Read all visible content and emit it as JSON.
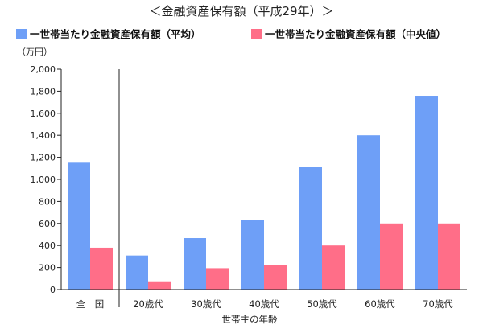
{
  "chart_data": {
    "type": "bar",
    "title": "＜金融資産保有額（平成29年）＞",
    "ylabel": "（万円）",
    "xlabel": "世帯主の年齢",
    "ylim": [
      0,
      2000
    ],
    "y_ticks": [
      "0",
      "200",
      "400",
      "600",
      "800",
      "1,000",
      "1,200",
      "1,400",
      "1,600",
      "1,800",
      "2,000"
    ],
    "y_tick_values": [
      0,
      200,
      400,
      600,
      800,
      1000,
      1200,
      1400,
      1600,
      1800,
      2000
    ],
    "categories": [
      "全　国",
      "20歳代",
      "30歳代",
      "40歳代",
      "50歳代",
      "60歳代",
      "70歳代"
    ],
    "grid": false,
    "legend_position": "top",
    "series": [
      {
        "name": "一世帯当たり金融資産保有額（平均）",
        "color": "#6e9ff7",
        "values": [
          1151,
          309,
          467,
          630,
          1110,
          1400,
          1759
        ]
      },
      {
        "name": "一世帯当たり金融資産保有額（中央値）",
        "color": "#ff6e88",
        "values": [
          380,
          75,
          194,
          220,
          400,
          600,
          600
        ]
      }
    ]
  }
}
